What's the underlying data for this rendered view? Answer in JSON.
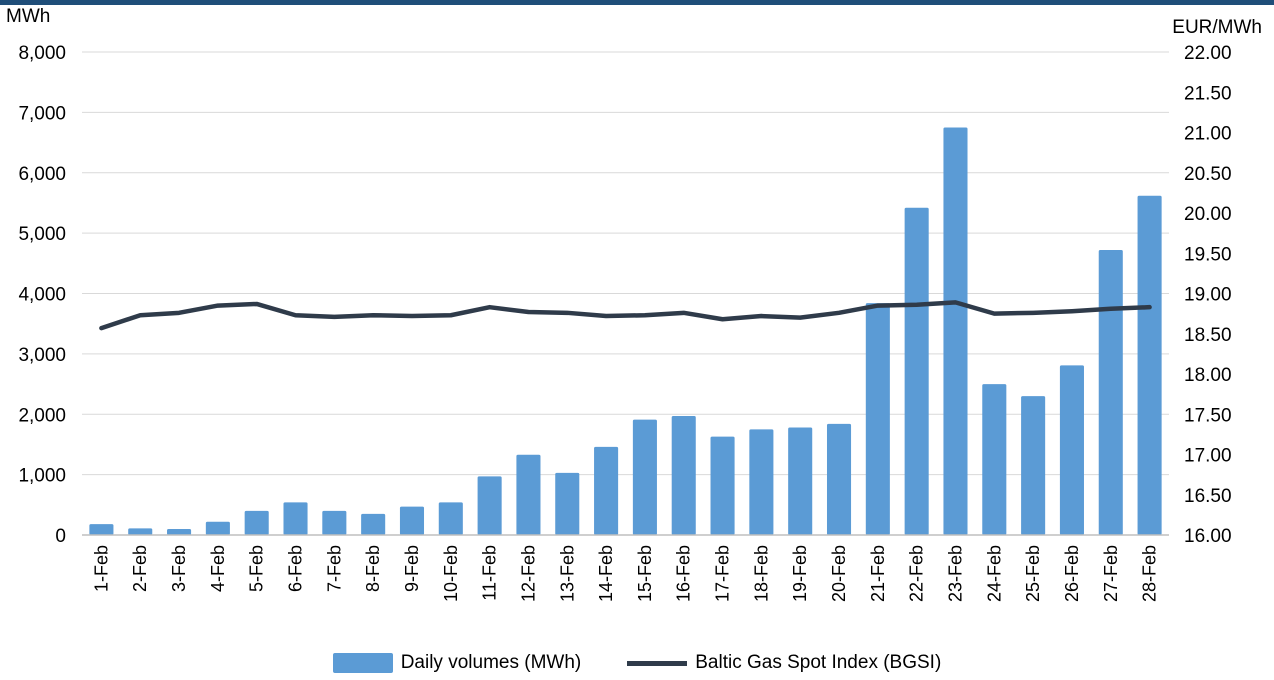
{
  "chart_data": {
    "type": "bar",
    "xlabel": "",
    "categories": [
      "1-Feb",
      "2-Feb",
      "3-Feb",
      "4-Feb",
      "5-Feb",
      "6-Feb",
      "7-Feb",
      "8-Feb",
      "9-Feb",
      "10-Feb",
      "11-Feb",
      "12-Feb",
      "13-Feb",
      "14-Feb",
      "15-Feb",
      "16-Feb",
      "17-Feb",
      "18-Feb",
      "19-Feb",
      "20-Feb",
      "21-Feb",
      "22-Feb",
      "23-Feb",
      "24-Feb",
      "25-Feb",
      "26-Feb",
      "27-Feb",
      "28-Feb"
    ],
    "y_left": {
      "unit": "MWh",
      "ylim": [
        0,
        8000
      ],
      "ticks": [
        "0",
        "1,000",
        "2,000",
        "3,000",
        "4,000",
        "5,000",
        "6,000",
        "7,000",
        "8,000"
      ],
      "tick_values": [
        0,
        1000,
        2000,
        3000,
        4000,
        5000,
        6000,
        7000,
        8000
      ]
    },
    "y_right": {
      "unit": "EUR/MWh",
      "ylim": [
        16.0,
        22.0
      ],
      "ticks": [
        "16.00",
        "16.50",
        "17.00",
        "17.50",
        "18.00",
        "18.50",
        "19.00",
        "19.50",
        "20.00",
        "20.50",
        "21.00",
        "21.50",
        "22.00"
      ],
      "tick_values": [
        16.0,
        16.5,
        17.0,
        17.5,
        18.0,
        18.5,
        19.0,
        19.5,
        20.0,
        20.5,
        21.0,
        21.5,
        22.0
      ]
    },
    "series": [
      {
        "name": "Daily volumes (MWh)",
        "type": "bar",
        "axis": "left",
        "color": "#5b9bd5",
        "values": [
          180,
          110,
          100,
          220,
          400,
          540,
          400,
          350,
          470,
          540,
          970,
          1330,
          1030,
          1460,
          1910,
          1970,
          1630,
          1750,
          1780,
          1840,
          3840,
          5420,
          6750,
          2500,
          2300,
          2810,
          4720,
          5620
        ]
      },
      {
        "name": "Baltic Gas Spot Index (BGSI)",
        "type": "line",
        "axis": "right",
        "color": "#2f3b4a",
        "values": [
          18.57,
          18.73,
          18.76,
          18.85,
          18.87,
          18.73,
          18.71,
          18.73,
          18.72,
          18.73,
          18.83,
          18.77,
          18.76,
          18.72,
          18.73,
          18.76,
          18.68,
          18.72,
          18.7,
          18.76,
          18.85,
          18.86,
          18.89,
          18.75,
          18.76,
          18.78,
          18.81,
          18.83
        ]
      }
    ],
    "grid": true,
    "legend_position": "bottom"
  }
}
